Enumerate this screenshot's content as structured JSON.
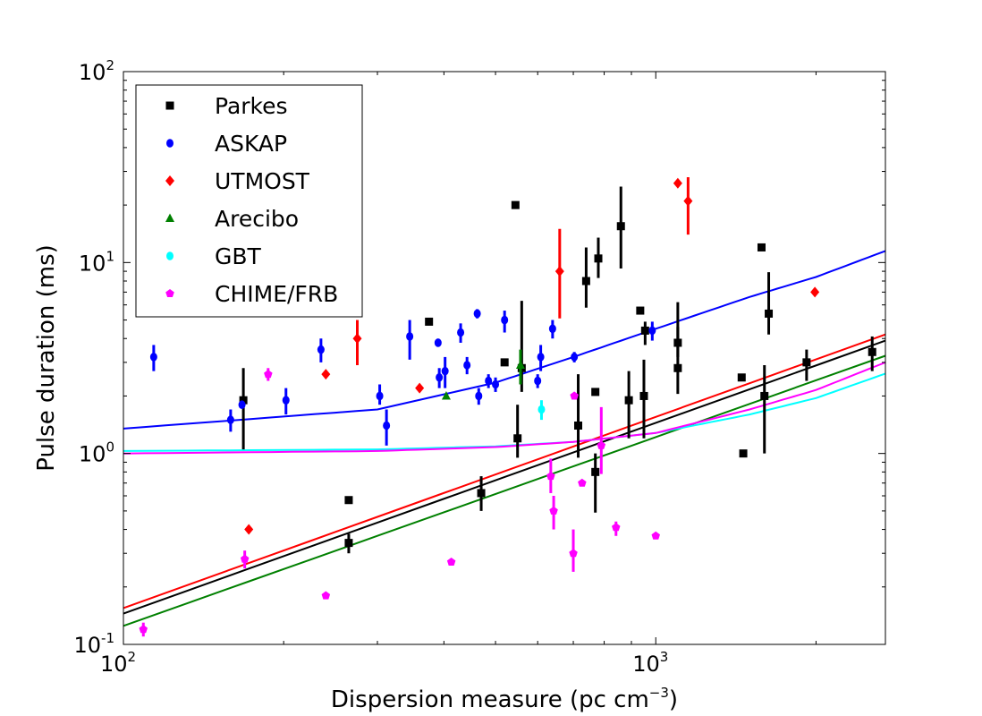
{
  "chart_data": {
    "type": "scatter",
    "xscale": "log",
    "yscale": "log",
    "xlim": [
      100,
      2700
    ],
    "ylim": [
      0.1,
      100
    ],
    "xlabel_main": "Dispersion measure (pc cm",
    "xlabel_sup": "−3",
    "xlabel_close": ")",
    "ylabel": "Pulse duration (ms)",
    "xticks": [
      {
        "value": 100,
        "base": "10",
        "exp": "2"
      },
      {
        "value": 1000,
        "base": "10",
        "exp": "3"
      }
    ],
    "yticks": [
      {
        "value": 0.1,
        "base": "10",
        "exp": "-1"
      },
      {
        "value": 1,
        "base": "10",
        "exp": "0"
      },
      {
        "value": 10,
        "base": "10",
        "exp": "1"
      },
      {
        "value": 100,
        "base": "10",
        "exp": "2"
      }
    ],
    "legend_position": "top-left",
    "series": [
      {
        "name": "Parkes",
        "color": "#000000",
        "marker": "square",
        "points": [
          {
            "x": 168,
            "y": 1.9,
            "lo": 1.05,
            "hi": 2.8
          },
          {
            "x": 265,
            "y": 0.57
          },
          {
            "x": 265,
            "y": 0.34,
            "lo": 0.3,
            "hi": 0.38
          },
          {
            "x": 375,
            "y": 4.9
          },
          {
            "x": 470,
            "y": 0.62,
            "lo": 0.5,
            "hi": 0.76
          },
          {
            "x": 520,
            "y": 3.0
          },
          {
            "x": 545,
            "y": 20
          },
          {
            "x": 550,
            "y": 1.2,
            "lo": 0.95,
            "hi": 1.8
          },
          {
            "x": 560,
            "y": 2.8,
            "lo": 2.1,
            "hi": 6.3
          },
          {
            "x": 715,
            "y": 1.4,
            "lo": 0.95,
            "hi": 2.6
          },
          {
            "x": 740,
            "y": 8,
            "lo": 5.8,
            "hi": 12
          },
          {
            "x": 770,
            "y": 2.1
          },
          {
            "x": 770,
            "y": 0.8,
            "lo": 0.49,
            "hi": 1.0
          },
          {
            "x": 780,
            "y": 10.5,
            "lo": 8.3,
            "hi": 13.5
          },
          {
            "x": 860,
            "y": 15.5,
            "lo": 9.3,
            "hi": 25
          },
          {
            "x": 890,
            "y": 1.9,
            "lo": 1.2,
            "hi": 2.7
          },
          {
            "x": 935,
            "y": 5.6
          },
          {
            "x": 950,
            "y": 2.0,
            "lo": 1.2,
            "hi": 3.1
          },
          {
            "x": 955,
            "y": 4.4,
            "lo": 3.7,
            "hi": 4.9
          },
          {
            "x": 1100,
            "y": 3.8,
            "lo": 3.2,
            "hi": 6.2
          },
          {
            "x": 1100,
            "y": 2.8,
            "lo": 2.05,
            "hi": 4.6
          },
          {
            "x": 1450,
            "y": 2.5
          },
          {
            "x": 1460,
            "y": 1.0
          },
          {
            "x": 1580,
            "y": 12
          },
          {
            "x": 1600,
            "y": 2.0,
            "lo": 1.0,
            "hi": 2.9
          },
          {
            "x": 1630,
            "y": 5.4,
            "lo": 4.2,
            "hi": 8.9
          },
          {
            "x": 1920,
            "y": 3.0,
            "lo": 2.4,
            "hi": 3.5
          },
          {
            "x": 2550,
            "y": 3.4,
            "lo": 2.7,
            "hi": 4.1
          }
        ]
      },
      {
        "name": "ASKAP",
        "color": "#0000ff",
        "marker": "circle",
        "points": [
          {
            "x": 114,
            "y": 3.2,
            "lo": 2.7,
            "hi": 3.7
          },
          {
            "x": 159,
            "y": 1.5,
            "lo": 1.3,
            "hi": 1.7
          },
          {
            "x": 167,
            "y": 1.8
          },
          {
            "x": 202,
            "y": 1.9,
            "lo": 1.6,
            "hi": 2.2
          },
          {
            "x": 235,
            "y": 3.5,
            "lo": 3.0,
            "hi": 4.0
          },
          {
            "x": 303,
            "y": 2.0,
            "lo": 1.8,
            "hi": 2.3
          },
          {
            "x": 312,
            "y": 1.4,
            "lo": 1.1,
            "hi": 1.7
          },
          {
            "x": 345,
            "y": 4.1,
            "lo": 3.1,
            "hi": 5.0
          },
          {
            "x": 390,
            "y": 3.8
          },
          {
            "x": 392,
            "y": 2.5,
            "lo": 2.2,
            "hi": 2.8
          },
          {
            "x": 402,
            "y": 2.7,
            "lo": 2.2,
            "hi": 3.2
          },
          {
            "x": 430,
            "y": 4.3,
            "lo": 3.8,
            "hi": 4.8
          },
          {
            "x": 442,
            "y": 2.9,
            "lo": 2.6,
            "hi": 3.2
          },
          {
            "x": 462,
            "y": 5.4,
            "lo": 5.1,
            "hi": 5.7
          },
          {
            "x": 465,
            "y": 2.0,
            "lo": 1.8,
            "hi": 2.2
          },
          {
            "x": 485,
            "y": 2.4,
            "lo": 2.2,
            "hi": 2.6
          },
          {
            "x": 500,
            "y": 2.3,
            "lo": 2.1,
            "hi": 2.5
          },
          {
            "x": 520,
            "y": 5.0,
            "lo": 4.3,
            "hi": 5.6
          },
          {
            "x": 600,
            "y": 2.4,
            "lo": 2.2,
            "hi": 2.6
          },
          {
            "x": 608,
            "y": 3.2,
            "lo": 2.7,
            "hi": 3.7
          },
          {
            "x": 640,
            "y": 4.5,
            "lo": 4.0,
            "hi": 5.0
          },
          {
            "x": 703,
            "y": 3.2,
            "lo": 3.0,
            "hi": 3.4
          },
          {
            "x": 985,
            "y": 4.4,
            "lo": 3.9,
            "hi": 4.9
          }
        ]
      },
      {
        "name": "UTMOST",
        "color": "#ff0000",
        "marker": "diamond",
        "points": [
          {
            "x": 172,
            "y": 0.4
          },
          {
            "x": 240,
            "y": 2.6
          },
          {
            "x": 275,
            "y": 4.0,
            "lo": 2.9,
            "hi": 5.0
          },
          {
            "x": 360,
            "y": 2.2
          },
          {
            "x": 660,
            "y": 9,
            "lo": 5.1,
            "hi": 15
          },
          {
            "x": 1100,
            "y": 26
          },
          {
            "x": 1150,
            "y": 21,
            "lo": 14,
            "hi": 28
          },
          {
            "x": 1990,
            "y": 7.0
          }
        ]
      },
      {
        "name": "Arecibo",
        "color": "#008000",
        "marker": "triangle",
        "points": [
          {
            "x": 557,
            "y": 2.9,
            "lo": 2.3,
            "hi": 3.5
          },
          {
            "x": 404,
            "y": 2.0
          }
        ]
      },
      {
        "name": "GBT",
        "color": "#00ffff",
        "marker": "circle",
        "points": [
          {
            "x": 610,
            "y": 1.7,
            "lo": 1.5,
            "hi": 1.9
          }
        ]
      },
      {
        "name": "CHIME/FRB",
        "color": "#ff00ff",
        "marker": "pentagon",
        "points": [
          {
            "x": 109,
            "y": 0.12,
            "lo": 0.11,
            "hi": 0.13
          },
          {
            "x": 169,
            "y": 0.28,
            "lo": 0.25,
            "hi": 0.31
          },
          {
            "x": 187,
            "y": 2.6,
            "lo": 2.4,
            "hi": 2.8
          },
          {
            "x": 240,
            "y": 0.18
          },
          {
            "x": 413,
            "y": 0.27
          },
          {
            "x": 635,
            "y": 0.76,
            "lo": 0.62,
            "hi": 0.94
          },
          {
            "x": 643,
            "y": 0.5,
            "lo": 0.4,
            "hi": 0.6
          },
          {
            "x": 700,
            "y": 0.3,
            "lo": 0.24,
            "hi": 0.4
          },
          {
            "x": 703,
            "y": 2.0
          },
          {
            "x": 727,
            "y": 0.7
          },
          {
            "x": 790,
            "y": 1.1,
            "lo": 0.78,
            "hi": 1.75
          },
          {
            "x": 842,
            "y": 0.41,
            "lo": 0.37,
            "hi": 0.44
          },
          {
            "x": 1000,
            "y": 0.37
          }
        ]
      }
    ],
    "curves": [
      {
        "name": "ASKAP fit",
        "color": "#0000ff",
        "x": [
          100,
          300,
          500,
          700,
          1000,
          1500,
          2000,
          2700
        ],
        "y": [
          1.35,
          1.7,
          2.35,
          3.2,
          4.5,
          6.6,
          8.4,
          11.5
        ]
      },
      {
        "name": "UTMOST fit",
        "color": "#ff0000",
        "x": [
          100,
          2700
        ],
        "y": [
          0.155,
          4.2
        ]
      },
      {
        "name": "Parkes fit",
        "color": "#000000",
        "x": [
          100,
          2700
        ],
        "y": [
          0.145,
          3.9
        ]
      },
      {
        "name": "Arecibo fit",
        "color": "#008000",
        "x": [
          100,
          2700
        ],
        "y": [
          0.125,
          3.25
        ]
      },
      {
        "name": "GBT fit",
        "color": "#00ffff",
        "x": [
          100,
          300,
          500,
          700,
          1000,
          1500,
          2000,
          2700
        ],
        "y": [
          1.03,
          1.05,
          1.09,
          1.15,
          1.28,
          1.6,
          1.95,
          2.62
        ]
      },
      {
        "name": "CHIME/FRB fit",
        "color": "#ff00ff",
        "x": [
          100,
          300,
          500,
          700,
          1000,
          1500,
          2000,
          2700
        ],
        "y": [
          1.0,
          1.03,
          1.08,
          1.15,
          1.28,
          1.7,
          2.15,
          3.0
        ]
      }
    ]
  }
}
